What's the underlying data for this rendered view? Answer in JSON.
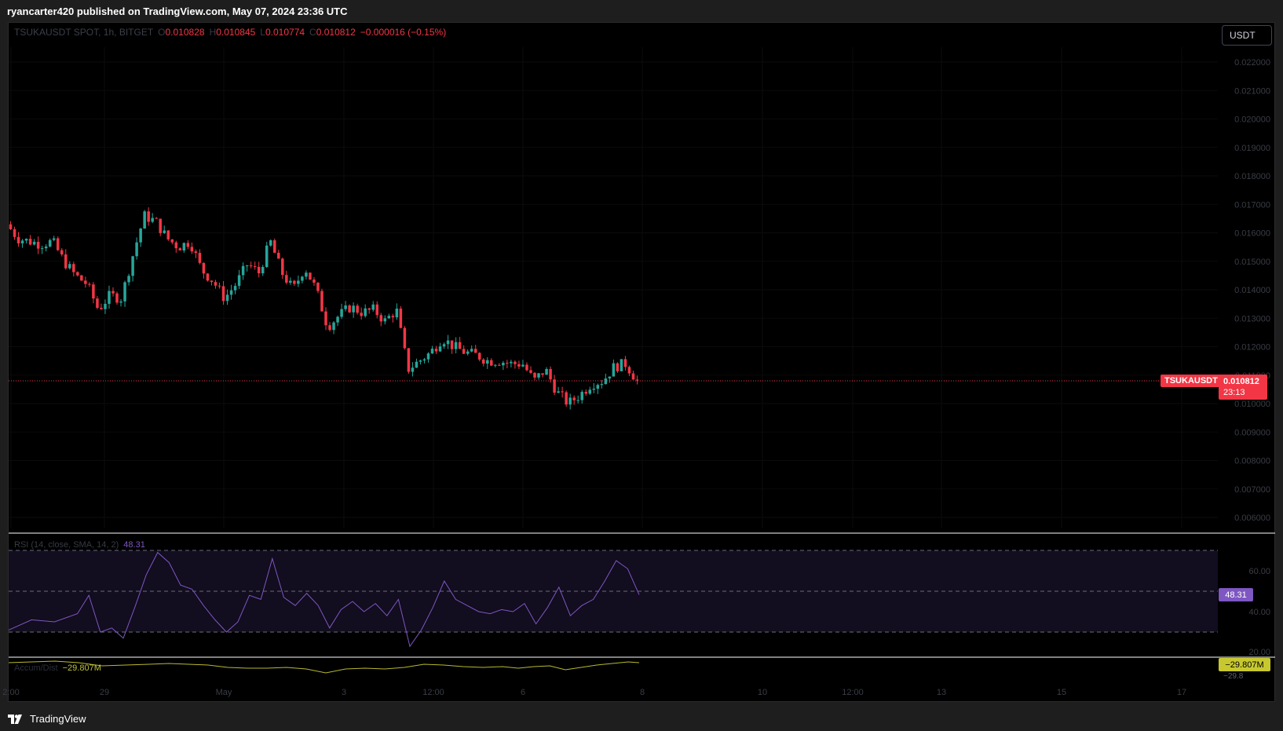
{
  "header": {
    "published_text": "ryancarter420 published on TradingView.com, May 07, 2024 23:36 UTC"
  },
  "legend": {
    "symbol": "TSUKAUSDT SPOT, 1h, BITGET",
    "open_label": "O",
    "open": "0.010828",
    "high_label": "H",
    "high": "0.010845",
    "low_label": "L",
    "low": "0.010774",
    "close_label": "C",
    "close": "0.010812",
    "change": "−0.000016 (−0.15%)"
  },
  "currency_button": "USDT",
  "last_price_label": {
    "symbol": "TSUKAUSDT",
    "price": "0.010812",
    "countdown": "23:13"
  },
  "rsi": {
    "legend": "RSI (14, close, SMA, 14, 2)",
    "value": "48.31",
    "levels": [
      "60.00",
      "40.00",
      "20.00"
    ]
  },
  "accum_dist": {
    "legend": "Accum/Dist",
    "value": "−29.807M",
    "scale_partial": "−29.8"
  },
  "colors": {
    "up": "#26a69a",
    "down": "#f23645",
    "rsi": "#7e57c2",
    "ad": "#b8b82f",
    "last_price_line": "#f23645"
  },
  "footer": {
    "brand": "TradingView",
    "logo_icon": "tradingview-logo-icon"
  },
  "chart_data": {
    "type": "candlestick",
    "symbol": "TSUKAUSDT",
    "interval": "1h",
    "exchange": "BITGET",
    "last_price": 0.010812,
    "ylim": [
      0.0055,
      0.0228
    ],
    "y_ticks": [
      "0.022000",
      "0.021000",
      "0.020000",
      "0.019000",
      "0.018000",
      "0.017000",
      "0.016000",
      "0.015000",
      "0.014000",
      "0.013000",
      "0.012000",
      "0.011000",
      "0.010000",
      "0.009000",
      "0.008000",
      "0.007000",
      "0.006000"
    ],
    "x_ticks": [
      "2:00",
      "29",
      "May",
      "3",
      "12:00",
      "6",
      "8",
      "10",
      "12:00",
      "13",
      "15",
      "17"
    ],
    "price_path": [
      {
        "x": 0,
        "y": 0.0163
      },
      {
        "x": 1,
        "y": 0.0158
      },
      {
        "x": 2,
        "y": 0.0157
      },
      {
        "x": 3,
        "y": 0.0156
      },
      {
        "x": 4,
        "y": 0.0157
      },
      {
        "x": 5,
        "y": 0.015
      },
      {
        "x": 6,
        "y": 0.0145
      },
      {
        "x": 7,
        "y": 0.0142
      },
      {
        "x": 8,
        "y": 0.0133
      },
      {
        "x": 9,
        "y": 0.0138
      },
      {
        "x": 10,
        "y": 0.0137
      },
      {
        "x": 11,
        "y": 0.0152
      },
      {
        "x": 12,
        "y": 0.0166
      },
      {
        "x": 13,
        "y": 0.0164
      },
      {
        "x": 14,
        "y": 0.0158
      },
      {
        "x": 15,
        "y": 0.0155
      },
      {
        "x": 16,
        "y": 0.0157
      },
      {
        "x": 17,
        "y": 0.0147
      },
      {
        "x": 18,
        "y": 0.0143
      },
      {
        "x": 19,
        "y": 0.0137
      },
      {
        "x": 20,
        "y": 0.0142
      },
      {
        "x": 21,
        "y": 0.0149
      },
      {
        "x": 22,
        "y": 0.0146
      },
      {
        "x": 23,
        "y": 0.0157
      },
      {
        "x": 24,
        "y": 0.0146
      },
      {
        "x": 25,
        "y": 0.014
      },
      {
        "x": 26,
        "y": 0.0148
      },
      {
        "x": 27,
        "y": 0.014
      },
      {
        "x": 28,
        "y": 0.0127
      },
      {
        "x": 29,
        "y": 0.0131
      },
      {
        "x": 30,
        "y": 0.0134
      },
      {
        "x": 31,
        "y": 0.0132
      },
      {
        "x": 32,
        "y": 0.0133
      },
      {
        "x": 33,
        "y": 0.0129
      },
      {
        "x": 34,
        "y": 0.0133
      },
      {
        "x": 35,
        "y": 0.0112
      },
      {
        "x": 36,
        "y": 0.0115
      },
      {
        "x": 37,
        "y": 0.0118
      },
      {
        "x": 38,
        "y": 0.0123
      },
      {
        "x": 39,
        "y": 0.012
      },
      {
        "x": 40,
        "y": 0.0118
      },
      {
        "x": 41,
        "y": 0.0117
      },
      {
        "x": 42,
        "y": 0.0115
      },
      {
        "x": 43,
        "y": 0.0115
      },
      {
        "x": 44,
        "y": 0.0114
      },
      {
        "x": 45,
        "y": 0.0114
      },
      {
        "x": 46,
        "y": 0.0108
      },
      {
        "x": 47,
        "y": 0.0112
      },
      {
        "x": 48,
        "y": 0.0104
      },
      {
        "x": 49,
        "y": 0.01
      },
      {
        "x": 50,
        "y": 0.0103
      },
      {
        "x": 51,
        "y": 0.0107
      },
      {
        "x": 52,
        "y": 0.0108
      },
      {
        "x": 53,
        "y": 0.0113
      },
      {
        "x": 54,
        "y": 0.0114
      },
      {
        "x": 55,
        "y": 0.0108
      }
    ],
    "rsi_path": [
      {
        "x": 0,
        "y": 31
      },
      {
        "x": 2,
        "y": 36
      },
      {
        "x": 4,
        "y": 35
      },
      {
        "x": 6,
        "y": 39
      },
      {
        "x": 7,
        "y": 48
      },
      {
        "x": 8,
        "y": 30
      },
      {
        "x": 9,
        "y": 32
      },
      {
        "x": 10,
        "y": 27
      },
      {
        "x": 11,
        "y": 42
      },
      {
        "x": 12,
        "y": 58
      },
      {
        "x": 13,
        "y": 69
      },
      {
        "x": 14,
        "y": 64
      },
      {
        "x": 15,
        "y": 53
      },
      {
        "x": 16,
        "y": 51
      },
      {
        "x": 17,
        "y": 43
      },
      {
        "x": 18,
        "y": 36
      },
      {
        "x": 19,
        "y": 30
      },
      {
        "x": 20,
        "y": 35
      },
      {
        "x": 21,
        "y": 48
      },
      {
        "x": 22,
        "y": 46
      },
      {
        "x": 23,
        "y": 66
      },
      {
        "x": 24,
        "y": 47
      },
      {
        "x": 25,
        "y": 43
      },
      {
        "x": 26,
        "y": 49
      },
      {
        "x": 27,
        "y": 43
      },
      {
        "x": 28,
        "y": 32
      },
      {
        "x": 29,
        "y": 41
      },
      {
        "x": 30,
        "y": 45
      },
      {
        "x": 31,
        "y": 40
      },
      {
        "x": 32,
        "y": 44
      },
      {
        "x": 33,
        "y": 38
      },
      {
        "x": 34,
        "y": 46
      },
      {
        "x": 35,
        "y": 23
      },
      {
        "x": 36,
        "y": 31
      },
      {
        "x": 37,
        "y": 42
      },
      {
        "x": 38,
        "y": 55
      },
      {
        "x": 39,
        "y": 46
      },
      {
        "x": 40,
        "y": 43
      },
      {
        "x": 41,
        "y": 40
      },
      {
        "x": 42,
        "y": 39
      },
      {
        "x": 43,
        "y": 41
      },
      {
        "x": 44,
        "y": 40
      },
      {
        "x": 45,
        "y": 44
      },
      {
        "x": 46,
        "y": 34
      },
      {
        "x": 47,
        "y": 42
      },
      {
        "x": 48,
        "y": 52
      },
      {
        "x": 49,
        "y": 38
      },
      {
        "x": 50,
        "y": 43
      },
      {
        "x": 51,
        "y": 46
      },
      {
        "x": 52,
        "y": 55
      },
      {
        "x": 53,
        "y": 65
      },
      {
        "x": 54,
        "y": 61
      },
      {
        "x": 55,
        "y": 48.31
      }
    ]
  }
}
